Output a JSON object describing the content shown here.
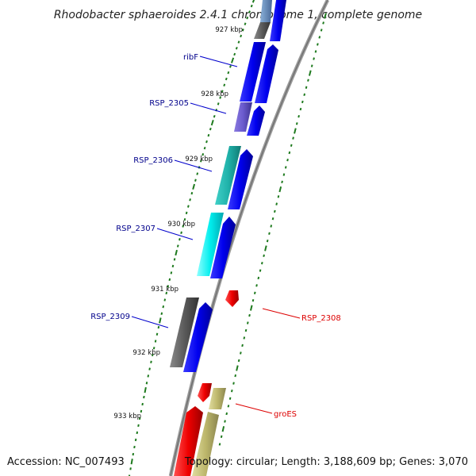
{
  "title": "Rhodobacter sphaeroides 2.4.1 chromosome 1, complete genome",
  "accession_text": "Accession: NC_007493",
  "topology_text": "Topology: circular; Length: 3,188,609 bp; Genes: 3,070",
  "kbp_labels": [
    "927 kbp",
    "928 kbp",
    "929 kbp",
    "930 kbp",
    "931 kbp",
    "932 kbp",
    "933 kbp"
  ],
  "genes": [
    {
      "name": "ribF",
      "strand": "reverse",
      "color": "#0000dd"
    },
    {
      "name": "RSP_2305",
      "strand": "reverse",
      "color": "#6a5acd"
    },
    {
      "name": "RSP_2306",
      "strand": "reverse",
      "color": "#20b2aa"
    },
    {
      "name": "RSP_2307",
      "strand": "reverse",
      "color": "#00e5ee"
    },
    {
      "name": "RSP_2309",
      "strand": "reverse",
      "color": "#555555"
    },
    {
      "name": "RSP_2308",
      "strand": "forward",
      "color": "#ee0000"
    },
    {
      "name": "groES",
      "strand": "forward",
      "color": "#ee0000"
    }
  ],
  "colors": {
    "reverse_label": "#00008b",
    "forward_label": "#dd0000",
    "cds_blue": "#0000ee",
    "tick_green": "#1e7a1e",
    "backbone": "#888888",
    "groEL_khaki": "#bdb76b"
  }
}
